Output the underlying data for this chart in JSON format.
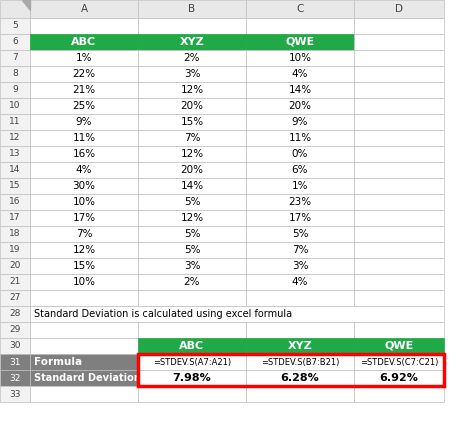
{
  "col_headers": [
    "A",
    "B",
    "C",
    "D"
  ],
  "header_row": [
    "ABC",
    "XYZ",
    "QWE"
  ],
  "data_rows": [
    [
      "1%",
      "2%",
      "10%"
    ],
    [
      "22%",
      "3%",
      "4%"
    ],
    [
      "21%",
      "12%",
      "14%"
    ],
    [
      "25%",
      "20%",
      "20%"
    ],
    [
      "9%",
      "15%",
      "9%"
    ],
    [
      "11%",
      "7%",
      "11%"
    ],
    [
      "16%",
      "12%",
      "0%"
    ],
    [
      "4%",
      "20%",
      "6%"
    ],
    [
      "30%",
      "14%",
      "1%"
    ],
    [
      "10%",
      "5%",
      "23%"
    ],
    [
      "17%",
      "12%",
      "17%"
    ],
    [
      "7%",
      "5%",
      "5%"
    ],
    [
      "12%",
      "5%",
      "7%"
    ],
    [
      "15%",
      "3%",
      "3%"
    ],
    [
      "10%",
      "2%",
      "4%"
    ]
  ],
  "note_text": "Standard Deviation is calculated using excel formula",
  "bottom_header": [
    "ABC",
    "XYZ",
    "QWE"
  ],
  "formula_row": [
    "=STDEV.S(A7:A21)",
    "=STDEV.S(B7:B21)",
    "=STDEV.S(C7:C21)"
  ],
  "stddev_row": [
    "7.98%",
    "6.28%",
    "6.92%"
  ],
  "green_color": "#21A847",
  "gray_color": "#7F7F7F",
  "white_color": "#FFFFFF",
  "light_gray": "#F2F2F2",
  "red_border": "#FF0000",
  "grid_color": "#BFBFBF",
  "bg_color": "#FFFFFF",
  "col_header_bg": "#E8E8E8",
  "row_num_bg": "#F2F2F2",
  "row_labels": [
    "5",
    "6",
    "7",
    "8",
    "9",
    "10",
    "11",
    "12",
    "13",
    "14",
    "15",
    "16",
    "17",
    "18",
    "19",
    "20",
    "21",
    "27",
    "28",
    "29",
    "30",
    "31",
    "32",
    "33"
  ]
}
